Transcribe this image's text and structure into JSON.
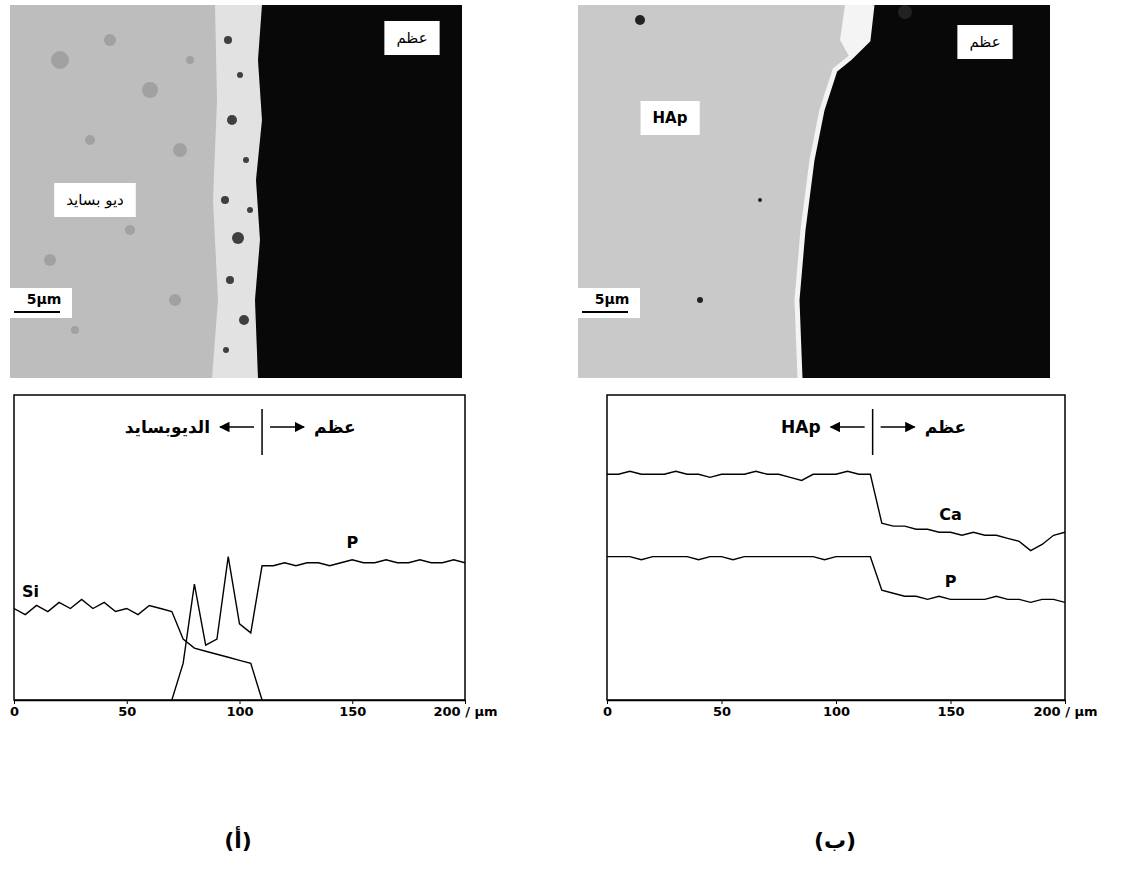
{
  "panel_labels": [
    "(أ)",
    "(ب)"
  ],
  "micrographs": [
    {
      "left_label": "ديو بسايد",
      "right_label": "عظم",
      "scale_bar": "5μm"
    },
    {
      "left_label": "HAp",
      "right_label": "عظم",
      "scale_bar": "5μm"
    }
  ],
  "chart_data": [
    {
      "type": "line",
      "x": [
        0,
        5,
        10,
        15,
        20,
        25,
        30,
        35,
        40,
        45,
        50,
        55,
        60,
        65,
        70,
        75,
        80,
        85,
        90,
        95,
        100,
        105,
        110,
        115,
        120,
        125,
        130,
        135,
        140,
        145,
        150,
        155,
        160,
        165,
        170,
        175,
        180,
        185,
        190,
        195,
        200
      ],
      "xlim": [
        0,
        200
      ],
      "xticks": [
        0,
        50,
        100,
        150,
        {
          "value": 200,
          "label": "200 / µm"
        }
      ],
      "ylim": [
        0,
        100
      ],
      "tick_labels": "x",
      "annotation": {
        "x": 110,
        "left_label": "الديوبسايد",
        "right_label": "عظم"
      },
      "series": [
        {
          "name": "Si",
          "color": "#000000",
          "values": [
            30,
            28,
            31,
            29,
            32,
            30,
            33,
            30,
            32,
            29,
            30,
            28,
            31,
            30,
            29,
            20,
            17,
            16,
            15,
            14,
            13,
            12,
            0,
            null,
            null,
            null,
            null,
            null,
            null,
            null,
            null,
            null,
            null,
            null,
            null,
            null,
            null,
            null,
            null,
            null,
            null
          ]
        },
        {
          "name": "P",
          "color": "#000000",
          "values": [
            null,
            null,
            null,
            null,
            null,
            null,
            null,
            null,
            null,
            null,
            null,
            null,
            null,
            null,
            0,
            12,
            38,
            18,
            20,
            47,
            25,
            22,
            44,
            44,
            45,
            44,
            45,
            45,
            44,
            45,
            46,
            45,
            45,
            46,
            45,
            45,
            46,
            45,
            45,
            46,
            45
          ]
        }
      ]
    },
    {
      "type": "line",
      "x": [
        0,
        5,
        10,
        15,
        20,
        25,
        30,
        35,
        40,
        45,
        50,
        55,
        60,
        65,
        70,
        75,
        80,
        85,
        90,
        95,
        100,
        105,
        110,
        115,
        120,
        125,
        130,
        135,
        140,
        145,
        150,
        155,
        160,
        165,
        170,
        175,
        180,
        185,
        190,
        195,
        200
      ],
      "xlim": [
        0,
        200
      ],
      "xticks": [
        0,
        50,
        100,
        150,
        {
          "value": 200,
          "label": "200 / µm"
        }
      ],
      "ylim": [
        0,
        100
      ],
      "tick_labels": "x",
      "annotation": {
        "x": 116,
        "left_label": "HAp",
        "right_label": "عظم"
      },
      "series": [
        {
          "name": "Ca",
          "color": "#000000",
          "values": [
            74,
            74,
            75,
            74,
            74,
            74,
            75,
            74,
            74,
            73,
            74,
            74,
            74,
            75,
            74,
            74,
            73,
            72,
            74,
            74,
            74,
            75,
            74,
            74,
            58,
            57,
            57,
            56,
            56,
            55,
            55,
            54,
            55,
            54,
            54,
            53,
            52,
            49,
            51,
            54,
            55
          ]
        },
        {
          "name": "P",
          "color": "#000000",
          "values": [
            47,
            47,
            47,
            46,
            47,
            47,
            47,
            47,
            46,
            47,
            47,
            46,
            47,
            47,
            47,
            47,
            47,
            47,
            47,
            46,
            47,
            47,
            47,
            47,
            36,
            35,
            34,
            34,
            33,
            34,
            33,
            33,
            33,
            33,
            34,
            33,
            33,
            32,
            33,
            33,
            32
          ]
        }
      ]
    }
  ]
}
